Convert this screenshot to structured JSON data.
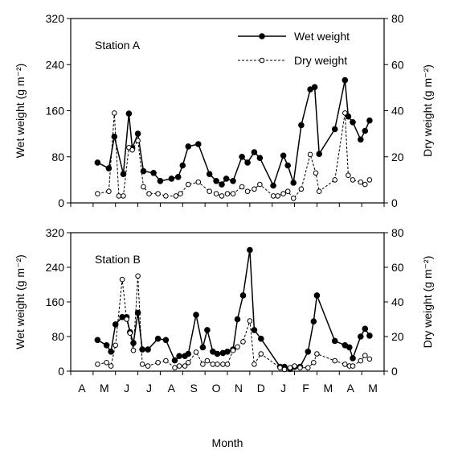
{
  "chart_data": [
    {
      "type": "line",
      "panel_label": "Station A",
      "x_axis": {
        "label": "",
        "ticks": [
          "A",
          "M",
          "J",
          "J",
          "A",
          "S",
          "O",
          "N",
          "D",
          "J",
          "F",
          "M",
          "A",
          "M"
        ],
        "start": "Apr",
        "end": "May (following year)"
      },
      "y_left": {
        "label": "Wet weight (g m⁻²)",
        "range": [
          0,
          320
        ],
        "ticks": [
          "0",
          "80",
          "160",
          "240",
          "320"
        ]
      },
      "y_right": {
        "label": "Dry weight (g m⁻²)",
        "range": [
          0,
          80
        ],
        "ticks": [
          "0",
          "20",
          "40",
          "60",
          "80"
        ]
      },
      "legend": {
        "placement": "top-right",
        "entries": [
          "Wet weight",
          "Dry weight"
        ]
      },
      "series": [
        {
          "name": "Wet weight",
          "axis": "left",
          "marker": "filled-circle",
          "line": "solid",
          "points": [
            [
              1.7,
              70
            ],
            [
              2.2,
              60
            ],
            [
              2.45,
              115
            ],
            [
              2.85,
              50
            ],
            [
              3.1,
              155
            ],
            [
              3.25,
              95
            ],
            [
              3.5,
              120
            ],
            [
              3.75,
              55
            ],
            [
              4.2,
              52
            ],
            [
              4.5,
              38
            ],
            [
              5.0,
              42
            ],
            [
              5.3,
              45
            ],
            [
              5.5,
              65
            ],
            [
              5.75,
              98
            ],
            [
              6.2,
              102
            ],
            [
              6.7,
              50
            ],
            [
              7.0,
              38
            ],
            [
              7.25,
              32
            ],
            [
              7.45,
              42
            ],
            [
              7.75,
              38
            ],
            [
              8.15,
              80
            ],
            [
              8.4,
              70
            ],
            [
              8.7,
              88
            ],
            [
              8.95,
              78
            ],
            [
              9.55,
              30
            ],
            [
              10.0,
              82
            ],
            [
              10.2,
              65
            ],
            [
              10.45,
              35
            ],
            [
              10.8,
              135
            ],
            [
              11.2,
              197
            ],
            [
              11.4,
              201
            ],
            [
              11.6,
              85
            ],
            [
              12.3,
              128
            ],
            [
              12.75,
              213
            ],
            [
              12.9,
              150
            ],
            [
              13.1,
              140
            ],
            [
              13.45,
              110
            ],
            [
              13.65,
              125
            ],
            [
              13.85,
              143
            ]
          ]
        },
        {
          "name": "Dry weight",
          "axis": "right",
          "marker": "open-circle",
          "line": "dashed",
          "points": [
            [
              1.7,
              4
            ],
            [
              2.2,
              5
            ],
            [
              2.45,
              39
            ],
            [
              2.65,
              3
            ],
            [
              2.85,
              3
            ],
            [
              3.1,
              24
            ],
            [
              3.25,
              23
            ],
            [
              3.5,
              27
            ],
            [
              3.75,
              7
            ],
            [
              4.0,
              4
            ],
            [
              4.4,
              4
            ],
            [
              4.75,
              3
            ],
            [
              5.2,
              3
            ],
            [
              5.4,
              4
            ],
            [
              5.75,
              8
            ],
            [
              6.2,
              9
            ],
            [
              6.7,
              5
            ],
            [
              7.0,
              4
            ],
            [
              7.25,
              3
            ],
            [
              7.5,
              4
            ],
            [
              7.75,
              4
            ],
            [
              8.15,
              7
            ],
            [
              8.4,
              5
            ],
            [
              8.7,
              6
            ],
            [
              8.95,
              8
            ],
            [
              9.55,
              3
            ],
            [
              9.75,
              3
            ],
            [
              10.0,
              4
            ],
            [
              10.2,
              5
            ],
            [
              10.45,
              2
            ],
            [
              10.8,
              6
            ],
            [
              11.2,
              21
            ],
            [
              11.45,
              13
            ],
            [
              11.6,
              5
            ],
            [
              12.3,
              10
            ],
            [
              12.75,
              39
            ],
            [
              12.9,
              12
            ],
            [
              13.1,
              10
            ],
            [
              13.45,
              9
            ],
            [
              13.65,
              8
            ],
            [
              13.85,
              10
            ]
          ]
        }
      ]
    },
    {
      "type": "line",
      "panel_label": "Station B",
      "x_axis": {
        "label": "Month",
        "ticks": [
          "A",
          "M",
          "J",
          "J",
          "A",
          "S",
          "O",
          "N",
          "D",
          "J",
          "F",
          "M",
          "A",
          "M"
        ]
      },
      "y_left": {
        "label": "Wet weight (g m⁻²)",
        "range": [
          0,
          320
        ],
        "ticks": [
          "0",
          "80",
          "160",
          "240",
          "320"
        ]
      },
      "y_right": {
        "label": "Dry weight (g m⁻²)",
        "range": [
          0,
          80
        ],
        "ticks": [
          "0",
          "20",
          "40",
          "60",
          "80"
        ]
      },
      "series": [
        {
          "name": "Wet weight",
          "axis": "left",
          "marker": "filled-circle",
          "line": "solid",
          "points": [
            [
              1.7,
              72
            ],
            [
              2.1,
              60
            ],
            [
              2.3,
              45
            ],
            [
              2.5,
              108
            ],
            [
              2.8,
              125
            ],
            [
              3.0,
              125
            ],
            [
              3.15,
              90
            ],
            [
              3.3,
              65
            ],
            [
              3.5,
              135
            ],
            [
              3.7,
              50
            ],
            [
              3.95,
              50
            ],
            [
              4.4,
              75
            ],
            [
              4.75,
              72
            ],
            [
              5.15,
              25
            ],
            [
              5.35,
              35
            ],
            [
              5.6,
              35
            ],
            [
              5.75,
              40
            ],
            [
              6.1,
              130
            ],
            [
              6.4,
              55
            ],
            [
              6.6,
              95
            ],
            [
              6.85,
              45
            ],
            [
              7.05,
              40
            ],
            [
              7.3,
              42
            ],
            [
              7.5,
              45
            ],
            [
              7.75,
              50
            ],
            [
              7.95,
              120
            ],
            [
              8.2,
              175
            ],
            [
              8.5,
              280
            ],
            [
              8.7,
              95
            ],
            [
              9.0,
              75
            ],
            [
              9.85,
              10
            ],
            [
              10.05,
              10
            ],
            [
              10.3,
              5
            ],
            [
              10.5,
              10
            ],
            [
              10.75,
              10
            ],
            [
              11.1,
              45
            ],
            [
              11.35,
              115
            ],
            [
              11.5,
              175
            ],
            [
              12.3,
              70
            ],
            [
              12.75,
              60
            ],
            [
              12.95,
              55
            ],
            [
              13.1,
              30
            ],
            [
              13.45,
              80
            ],
            [
              13.65,
              98
            ],
            [
              13.85,
              82
            ]
          ]
        },
        {
          "name": "Dry weight",
          "axis": "right",
          "marker": "open-circle",
          "line": "dashed",
          "points": [
            [
              1.7,
              4
            ],
            [
              2.1,
              5
            ],
            [
              2.3,
              3
            ],
            [
              2.5,
              15
            ],
            [
              2.8,
              53
            ],
            [
              3.0,
              30
            ],
            [
              3.15,
              22
            ],
            [
              3.3,
              12
            ],
            [
              3.5,
              55
            ],
            [
              3.7,
              4
            ],
            [
              3.95,
              3
            ],
            [
              4.4,
              5
            ],
            [
              4.75,
              6
            ],
            [
              5.15,
              2
            ],
            [
              5.35,
              3
            ],
            [
              5.6,
              3
            ],
            [
              5.75,
              5
            ],
            [
              6.1,
              11
            ],
            [
              6.4,
              4
            ],
            [
              6.6,
              6
            ],
            [
              6.85,
              4
            ],
            [
              7.05,
              4
            ],
            [
              7.3,
              4
            ],
            [
              7.5,
              4
            ],
            [
              7.75,
              12
            ],
            [
              7.95,
              14
            ],
            [
              8.2,
              17
            ],
            [
              8.5,
              29
            ],
            [
              8.7,
              4
            ],
            [
              9.0,
              10
            ],
            [
              9.85,
              2
            ],
            [
              10.05,
              1
            ],
            [
              10.3,
              2
            ],
            [
              10.5,
              3
            ],
            [
              10.75,
              2
            ],
            [
              11.1,
              2
            ],
            [
              11.35,
              5
            ],
            [
              11.5,
              10
            ],
            [
              12.3,
              6
            ],
            [
              12.75,
              4
            ],
            [
              12.95,
              3
            ],
            [
              13.1,
              3
            ],
            [
              13.45,
              6
            ],
            [
              13.65,
              9
            ],
            [
              13.85,
              7
            ]
          ]
        }
      ]
    }
  ]
}
